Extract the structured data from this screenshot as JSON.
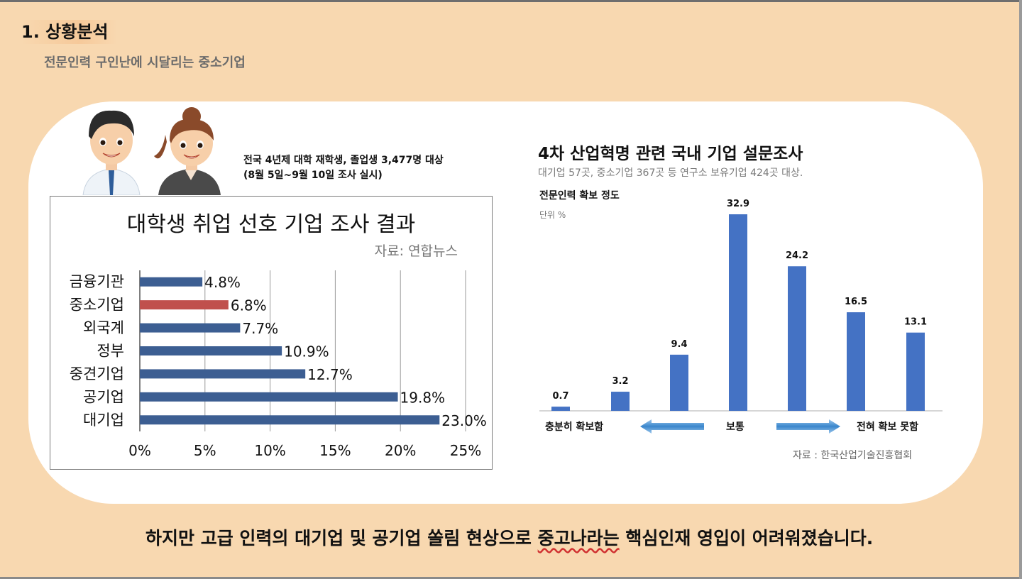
{
  "slide": {
    "heading": "1. 상황분석",
    "subheading": "전문인력 구인난에 시달리는 중소기업",
    "survey_note": {
      "line1": "전국 4년제 대학 재학생, 졸업생 3,477명 대상",
      "line2": "(8월 5일~9월 10일 조사 실시)"
    },
    "right_chart_meta": {
      "title": "4차 산업혁명 관련 국내 기업 설문조사",
      "subtitle": "대기업 57곳, 중소기업 367곳 등 연구소 보유기업 424곳 대상.",
      "label": "전문인력 확보 정도",
      "unit": "단위 %",
      "axis_left": "충분히 확보함",
      "axis_middle": "보통",
      "axis_right": "전혀 확보 못함",
      "source": "자료 : 한국산업기술진흥협회"
    },
    "conclusion": {
      "before": "하지만 고급 인력의 대기업 및 공기업 쏠림 현상으로 ",
      "marked": "중고나라는",
      "after": " 핵심인재 영입이 어려워졌습니다."
    },
    "colors": {
      "background": "#f8d8b0",
      "bar_blue": "#3c5e92",
      "bar_red": "#c0504d",
      "bar_right": "#4472c4",
      "arrow": "#4b95d3"
    }
  },
  "chart_data": [
    {
      "type": "bar",
      "orientation": "horizontal",
      "title": "대학생 취업 선호 기업 조사 결과",
      "source": "자료: 연합뉴스",
      "categories": [
        "금융기관",
        "중소기업",
        "외국계",
        "정부",
        "중견기업",
        "공기업",
        "대기업"
      ],
      "values": [
        4.8,
        6.8,
        7.7,
        10.9,
        12.7,
        19.8,
        23.0
      ],
      "value_labels": [
        "4.8%",
        "6.8%",
        "7.7%",
        "10.9%",
        "12.7%",
        "19.8%",
        "23.0%"
      ],
      "highlight": "중소기업",
      "xlim": [
        0,
        25
      ],
      "xticks": [
        "0%",
        "5%",
        "10%",
        "15%",
        "20%",
        "25%"
      ],
      "grid": true
    },
    {
      "type": "bar",
      "values": [
        0.7,
        3.2,
        9.4,
        32.9,
        24.2,
        16.5,
        13.1
      ],
      "value_labels": [
        "0.7",
        "3.2",
        "9.4",
        "32.9",
        "24.2",
        "16.5",
        "13.1"
      ],
      "ylim": [
        0,
        32.9
      ],
      "grid": false
    }
  ]
}
